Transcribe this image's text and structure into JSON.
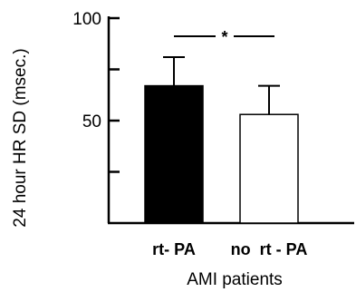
{
  "chart_data": {
    "type": "bar",
    "categories": [
      "rt- PA",
      "no  rt - PA"
    ],
    "values": [
      67,
      53
    ],
    "errors": [
      14,
      14
    ],
    "bar_fills": [
      "#000000",
      "#ffffff"
    ],
    "title": "",
    "xlabel": "AMI patients",
    "ylabel": "24 hour HR SD (msec.)",
    "ylim": [
      0,
      100
    ],
    "yticks": [
      0,
      25,
      50,
      75,
      100
    ],
    "ytick_labels": [
      "",
      "",
      "50",
      "",
      "100"
    ],
    "significance": {
      "between": [
        0,
        1
      ],
      "label": "*"
    },
    "grid": false,
    "legend": "none"
  }
}
